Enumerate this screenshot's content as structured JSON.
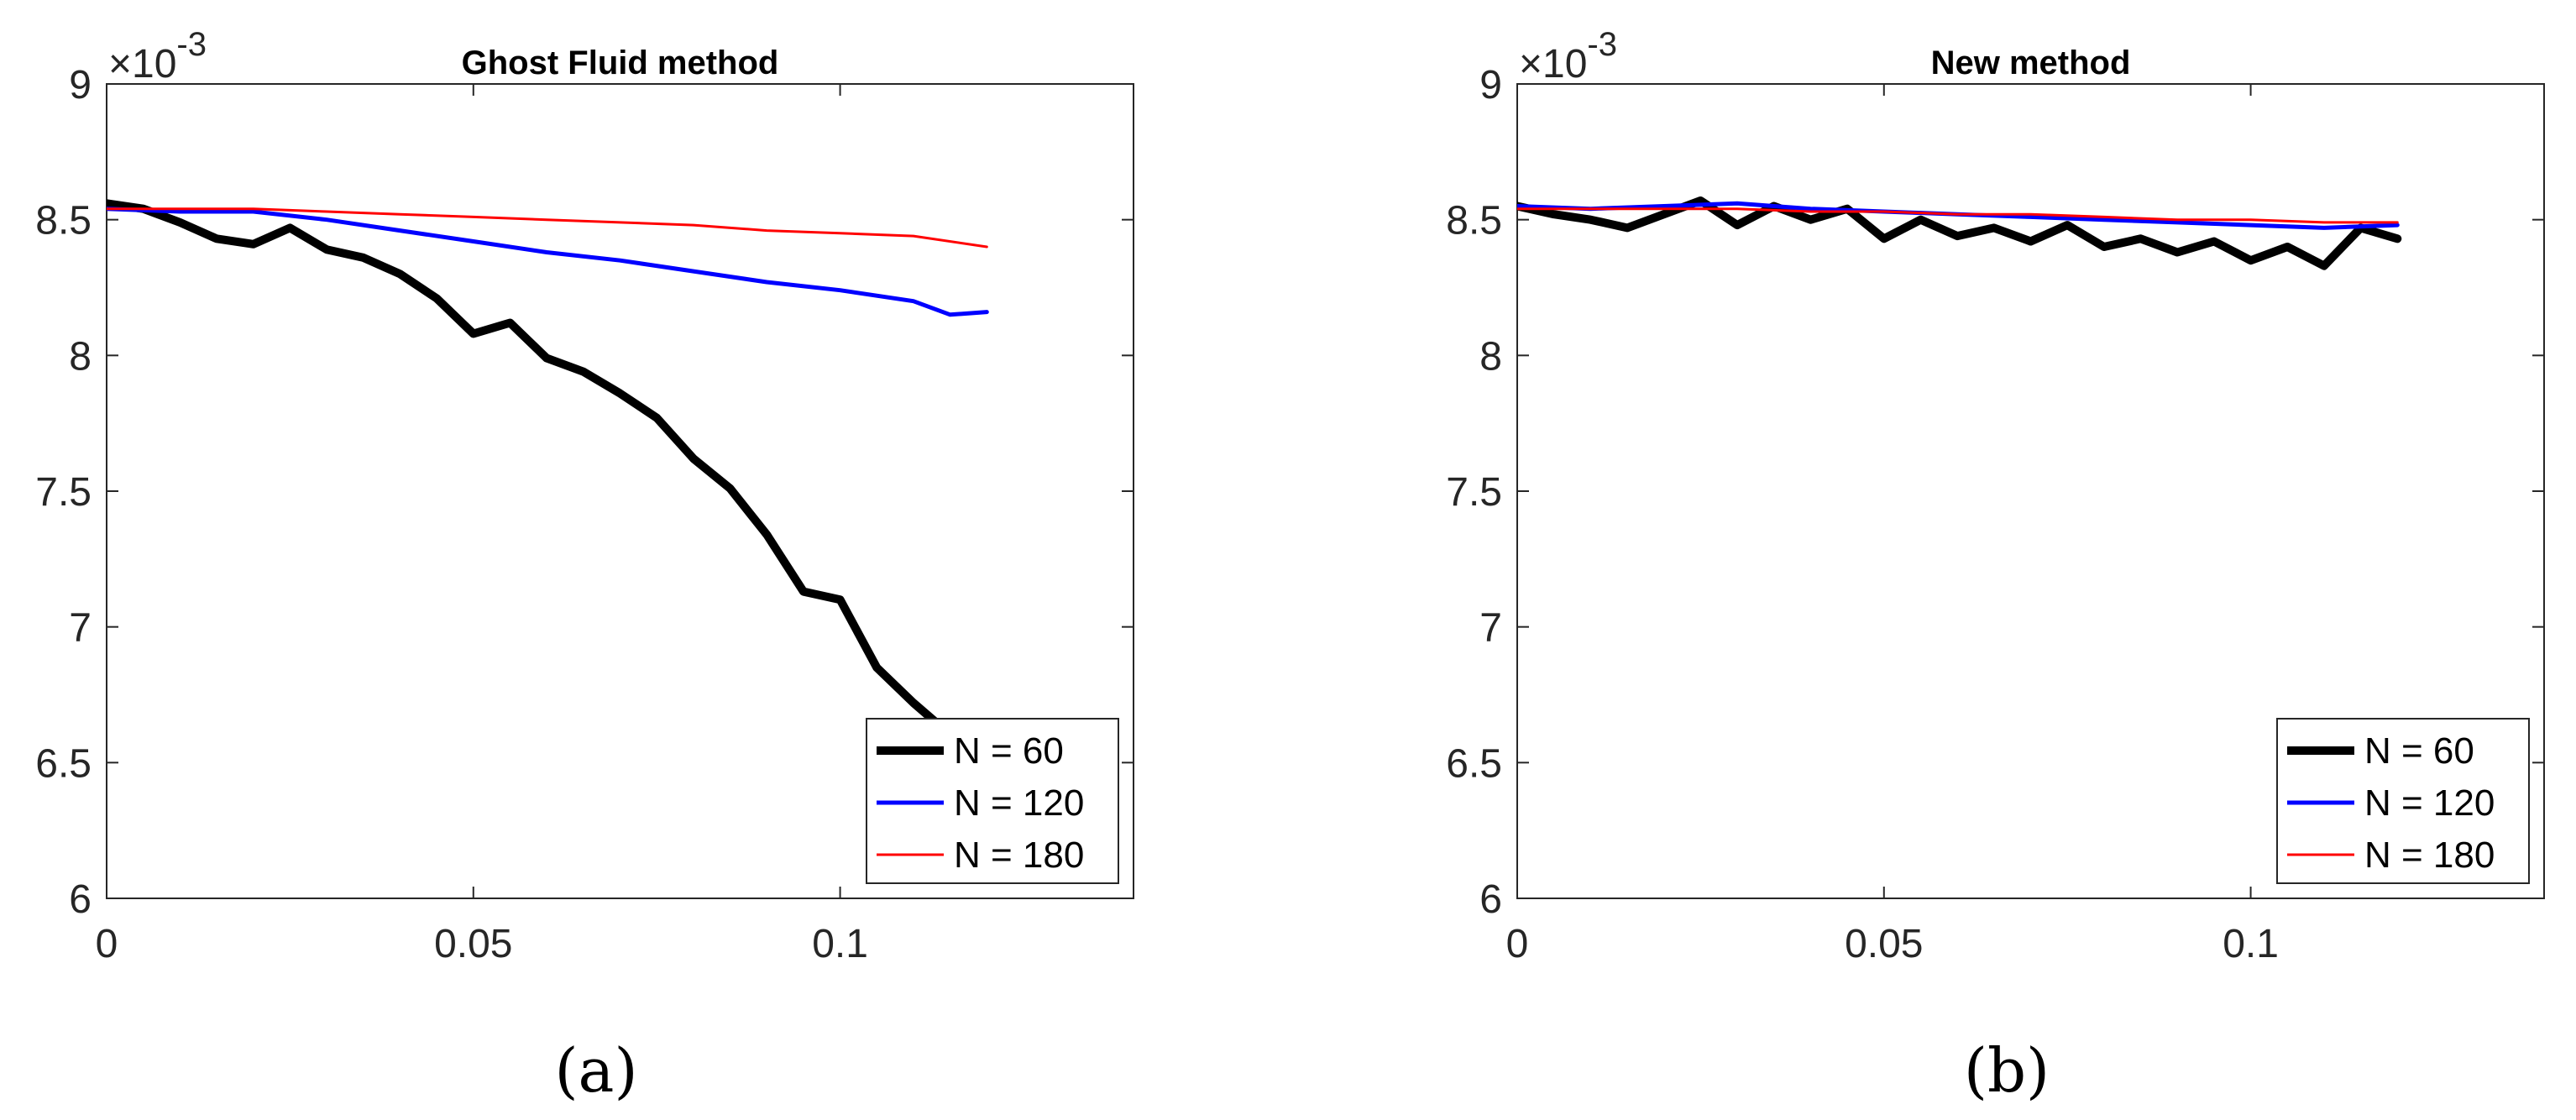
{
  "chart_data": [
    {
      "type": "line",
      "title": "Ghost Fluid method",
      "panel_label": "(a)",
      "exponent_label": "×10",
      "exponent_power": "-3",
      "xlabel": "",
      "ylabel": "",
      "xlim": [
        0,
        0.14
      ],
      "ylim": [
        6,
        9
      ],
      "xticks": [
        0,
        0.05,
        0.1
      ],
      "xtick_labels": [
        "0",
        "0.05",
        "0.1"
      ],
      "yticks": [
        6,
        6.5,
        7,
        7.5,
        8,
        8.5,
        9
      ],
      "ytick_labels": [
        "6",
        "6.5",
        "7",
        "7.5",
        "8",
        "8.5",
        "9"
      ],
      "legend_position": "bottom-right",
      "series": [
        {
          "name": "N = 60",
          "color": "#000000",
          "x": [
            0,
            0.005,
            0.01,
            0.015,
            0.02,
            0.025,
            0.03,
            0.035,
            0.04,
            0.045,
            0.05,
            0.055,
            0.06,
            0.065,
            0.07,
            0.075,
            0.08,
            0.085,
            0.09,
            0.095,
            0.1,
            0.105,
            0.11,
            0.113
          ],
          "values": [
            8.56,
            8.54,
            8.49,
            8.43,
            8.41,
            8.47,
            8.39,
            8.36,
            8.3,
            8.21,
            8.08,
            8.12,
            7.99,
            7.94,
            7.86,
            7.77,
            7.62,
            7.51,
            7.34,
            7.13,
            7.1,
            6.85,
            6.72,
            6.65
          ]
        },
        {
          "name": "N = 120",
          "color": "#0000ff",
          "x": [
            0,
            0.01,
            0.02,
            0.03,
            0.04,
            0.05,
            0.06,
            0.07,
            0.08,
            0.09,
            0.1,
            0.11,
            0.115,
            0.12
          ],
          "values": [
            8.54,
            8.53,
            8.53,
            8.5,
            8.46,
            8.42,
            8.38,
            8.35,
            8.31,
            8.27,
            8.24,
            8.2,
            8.15,
            8.16
          ]
        },
        {
          "name": "N = 180",
          "color": "#ff0000",
          "x": [
            0,
            0.01,
            0.02,
            0.03,
            0.04,
            0.05,
            0.06,
            0.07,
            0.08,
            0.09,
            0.1,
            0.11,
            0.12
          ],
          "values": [
            8.54,
            8.54,
            8.54,
            8.53,
            8.52,
            8.51,
            8.5,
            8.49,
            8.48,
            8.46,
            8.45,
            8.44,
            8.4
          ]
        }
      ]
    },
    {
      "type": "line",
      "title": "New method",
      "panel_label": "(b)",
      "exponent_label": "×10",
      "exponent_power": "-3",
      "xlabel": "",
      "ylabel": "",
      "xlim": [
        0,
        0.14
      ],
      "ylim": [
        6,
        9
      ],
      "xticks": [
        0,
        0.05,
        0.1
      ],
      "xtick_labels": [
        "0",
        "0.05",
        "0.1"
      ],
      "yticks": [
        6,
        6.5,
        7,
        7.5,
        8,
        8.5,
        9
      ],
      "ytick_labels": [
        "6",
        "6.5",
        "7",
        "7.5",
        "8",
        "8.5",
        "9"
      ],
      "legend_position": "bottom-right",
      "series": [
        {
          "name": "N = 60",
          "color": "#000000",
          "x": [
            0,
            0.005,
            0.01,
            0.015,
            0.02,
            0.025,
            0.03,
            0.035,
            0.04,
            0.045,
            0.05,
            0.055,
            0.06,
            0.065,
            0.07,
            0.075,
            0.08,
            0.085,
            0.09,
            0.095,
            0.1,
            0.105,
            0.11,
            0.115,
            0.12
          ],
          "values": [
            8.55,
            8.52,
            8.5,
            8.47,
            8.52,
            8.57,
            8.48,
            8.55,
            8.5,
            8.54,
            8.43,
            8.5,
            8.44,
            8.47,
            8.42,
            8.48,
            8.4,
            8.43,
            8.38,
            8.42,
            8.35,
            8.4,
            8.33,
            8.47,
            8.43
          ]
        },
        {
          "name": "N = 120",
          "color": "#0000ff",
          "x": [
            0,
            0.01,
            0.02,
            0.03,
            0.04,
            0.05,
            0.06,
            0.07,
            0.08,
            0.09,
            0.1,
            0.11,
            0.12
          ],
          "values": [
            8.55,
            8.54,
            8.55,
            8.56,
            8.54,
            8.53,
            8.52,
            8.51,
            8.5,
            8.49,
            8.48,
            8.47,
            8.48
          ]
        },
        {
          "name": "N = 180",
          "color": "#ff0000",
          "x": [
            0,
            0.01,
            0.02,
            0.03,
            0.04,
            0.05,
            0.06,
            0.07,
            0.08,
            0.09,
            0.1,
            0.11,
            0.12
          ],
          "values": [
            8.54,
            8.54,
            8.54,
            8.54,
            8.53,
            8.53,
            8.52,
            8.52,
            8.51,
            8.5,
            8.5,
            8.49,
            8.49
          ]
        }
      ]
    }
  ]
}
